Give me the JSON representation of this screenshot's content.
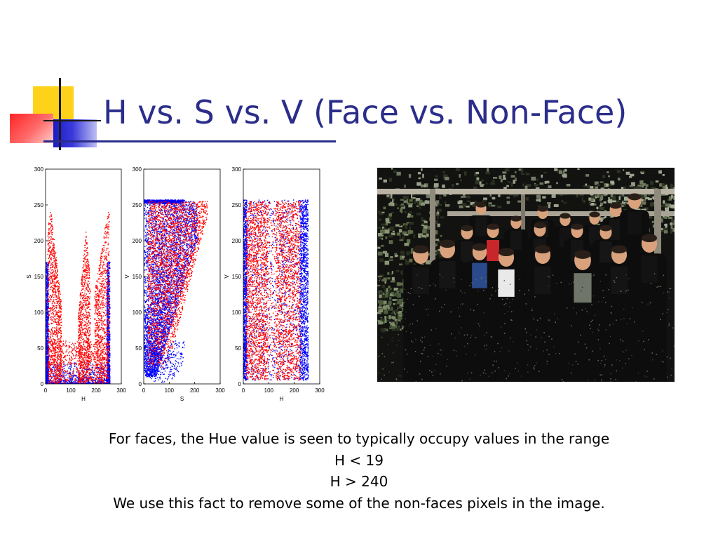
{
  "slide": {
    "title": "H vs. S vs. V (Face vs. Non-Face)",
    "caption_lines": [
      "For faces, the Hue value is seen to typically occupy values in the range",
      "H < 19",
      "H > 240",
      "We use this fact to remove some of the non-faces pixels in the image."
    ]
  },
  "colors": {
    "title": "#2b2d8a",
    "deco_yellow": "#ffd21a",
    "deco_red": "#ff2424",
    "deco_blue": "#1b1bc6",
    "non_face_points": "#0000ff",
    "face_points": "#ff0000"
  },
  "chart_data": [
    {
      "type": "scatter",
      "xlabel": "H",
      "ylabel": "S",
      "xlim": [
        0,
        300
      ],
      "ylim": [
        0,
        300
      ],
      "xticks": [
        0,
        100,
        200,
        300
      ],
      "yticks": [
        0,
        50,
        100,
        150,
        200,
        250,
        300
      ],
      "grid": false,
      "series": [
        {
          "color": "#0000ff",
          "region": "H 0–10 and H 245–255 across S 0–170; dense along S < 30"
        },
        {
          "color": "#ff0000",
          "region": "S 0–255 at H 10–60, H 130–175, H 200–250; peaks near H 160 and H 250"
        }
      ]
    },
    {
      "type": "scatter",
      "xlabel": "S",
      "ylabel": "V",
      "xlim": [
        0,
        300
      ],
      "ylim": [
        0,
        300
      ],
      "xticks": [
        0,
        100,
        200,
        300
      ],
      "yticks": [
        0,
        50,
        100,
        150,
        200,
        250,
        300
      ],
      "grid": false,
      "series": [
        {
          "color": "#0000ff",
          "region": "V 0–255, S 0–250 with upper bound falling as V decreases; band at V = 255"
        },
        {
          "color": "#ff0000",
          "region": "S 20–230, V 20–255, denser at higher V"
        }
      ]
    },
    {
      "type": "scatter",
      "xlabel": "H",
      "ylabel": "V",
      "xlim": [
        0,
        300
      ],
      "ylim": [
        0,
        300
      ],
      "xticks": [
        0,
        100,
        200,
        300
      ],
      "yticks": [
        0,
        50,
        100,
        150,
        200,
        250,
        300
      ],
      "grid": false,
      "series": [
        {
          "color": "#0000ff",
          "region": "H 0–255, V 0–255, strongest at H 0–10 and H 225–255"
        },
        {
          "color": "#ff0000",
          "region": "H 10–225, V 0–255, gap near H 100–125"
        }
      ]
    }
  ],
  "photo": {
    "icon": "group-photo"
  }
}
